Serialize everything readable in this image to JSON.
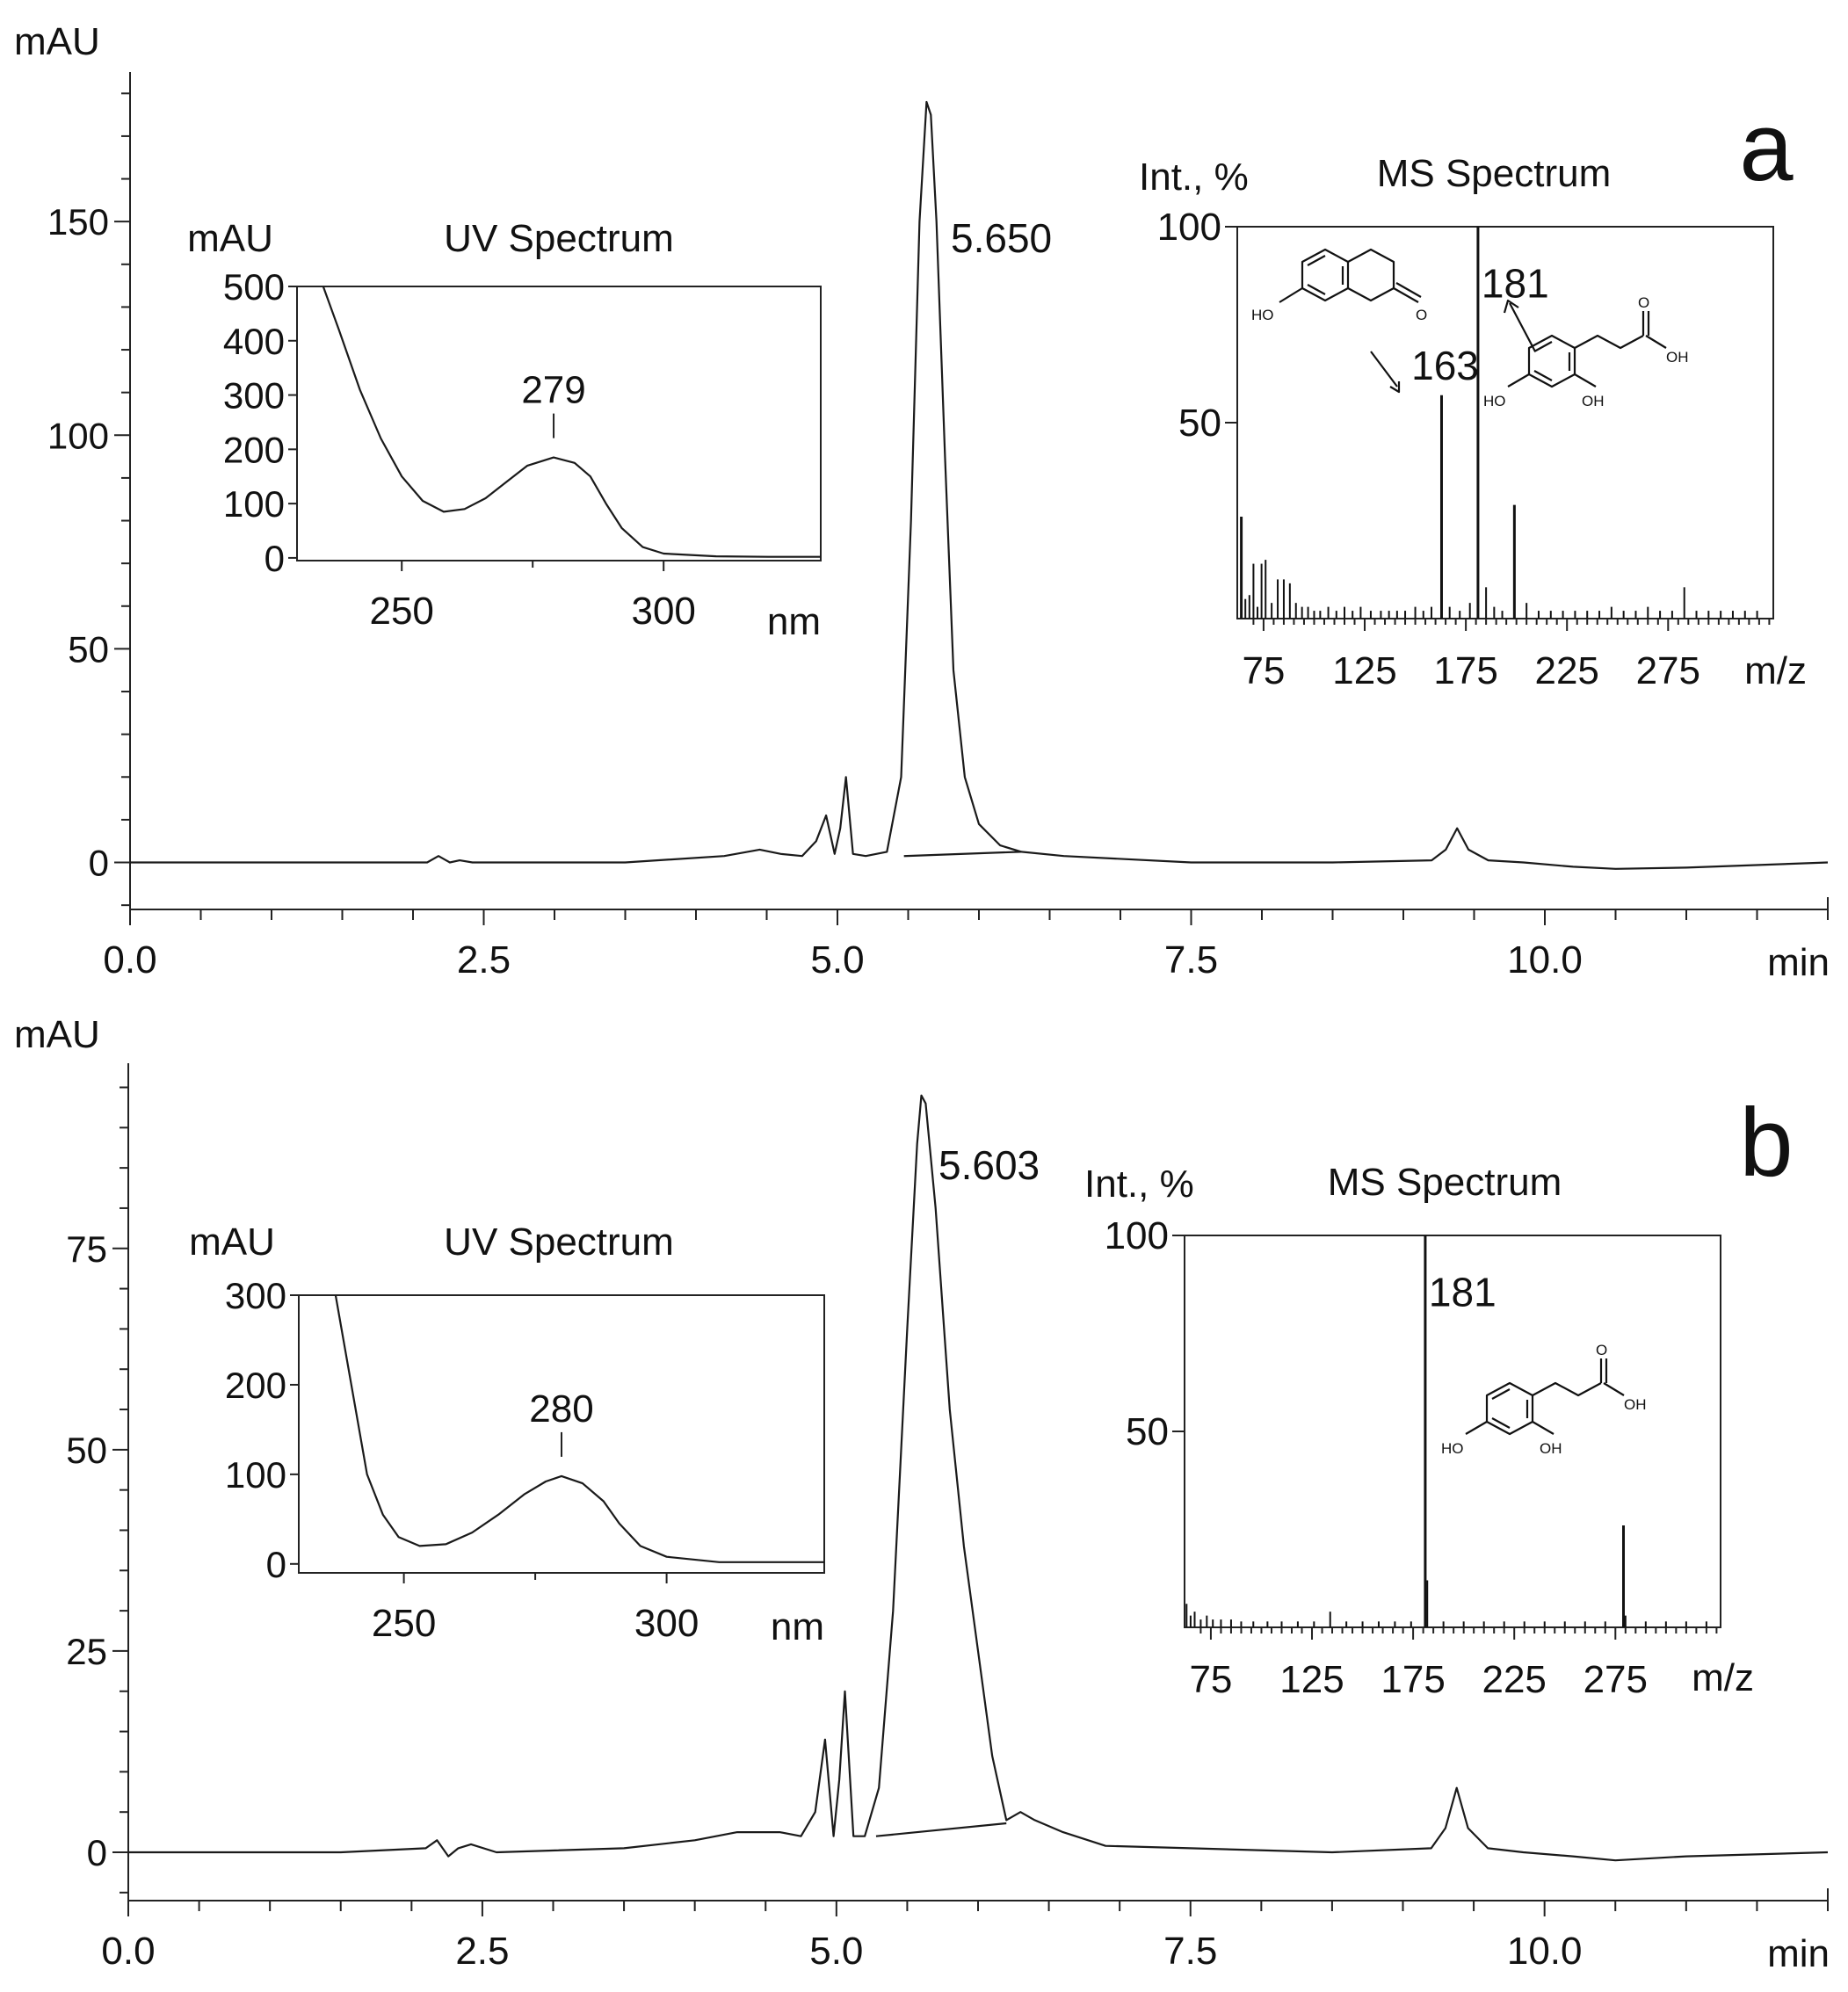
{
  "chart_data": [
    {
      "type": "line",
      "panel_label": "a",
      "ylabel": "mAU",
      "xlabel": "min",
      "xlim": [
        0,
        12
      ],
      "ylim": [
        -11,
        185
      ],
      "x_ticks": [
        "0.0",
        "2.5",
        "5.0",
        "7.5",
        "10.0"
      ],
      "x_tick_values": [
        0,
        2.5,
        5,
        7.5,
        10
      ],
      "y_ticks": [
        "0",
        "50",
        "100",
        "150"
      ],
      "y_tick_values": [
        0,
        50,
        100,
        150
      ],
      "peak_label": "5.650",
      "series": [
        {
          "name": "chromatogram a",
          "x": [
            0,
            1.5,
            2.1,
            2.18,
            2.26,
            2.33,
            2.42,
            2.6,
            3.5,
            4.2,
            4.45,
            4.6,
            4.75,
            4.85,
            4.92,
            4.98,
            5.02,
            5.06,
            5.11,
            5.2,
            5.35,
            5.45,
            5.52,
            5.58,
            5.63,
            5.66,
            5.7,
            5.76,
            5.82,
            5.9,
            6.0,
            6.15,
            6.3,
            6.6,
            7.5,
            8.5,
            9.2,
            9.3,
            9.38,
            9.46,
            9.6,
            9.85,
            10.2,
            10.5,
            11.0,
            12.0
          ],
          "y": [
            0,
            0,
            0,
            1.5,
            0,
            0.5,
            0,
            0,
            0,
            1.5,
            3,
            2,
            1.5,
            5,
            11,
            2,
            8,
            20,
            2,
            1.5,
            2.5,
            20,
            80,
            150,
            178,
            175,
            150,
            95,
            45,
            20,
            9,
            4,
            2.5,
            1.5,
            0,
            0,
            0.5,
            3,
            8,
            3,
            0.5,
            0,
            -1,
            -1.5,
            -1.2,
            0
          ]
        }
      ],
      "baseline_segment": {
        "x": [
          5.47,
          6.3
        ],
        "y": [
          1.5,
          2.5
        ]
      },
      "insets": [
        {
          "type": "line",
          "title": "UV Spectrum",
          "ylabel": "mAU",
          "xlabel": "nm",
          "xlim": [
            230,
            330
          ],
          "ylim": [
            -5,
            500
          ],
          "x_ticks": [
            "250",
            "300"
          ],
          "x_tick_values": [
            250,
            300
          ],
          "y_ticks": [
            "0",
            "100",
            "200",
            "300",
            "400",
            "500"
          ],
          "y_tick_values": [
            0,
            100,
            200,
            300,
            400,
            500
          ],
          "annotation": {
            "label": "279",
            "x": 279
          },
          "series": [
            {
              "name": "UV spectrum a",
              "x": [
                235,
                238,
                242,
                246,
                250,
                254,
                258,
                262,
                266,
                270,
                274,
                279,
                283,
                286,
                289,
                292,
                296,
                300,
                310,
                320,
                330
              ],
              "y": [
                500,
                420,
                310,
                220,
                150,
                105,
                85,
                90,
                110,
                140,
                170,
                185,
                175,
                150,
                100,
                55,
                20,
                8,
                3,
                2,
                2
              ]
            }
          ]
        },
        {
          "type": "bar",
          "title": "MS Spectrum",
          "ylabel": "Int., %",
          "xlabel": "m/z",
          "xlim": [
            62,
            327
          ],
          "ylim": [
            0,
            100
          ],
          "x_ticks": [
            "75",
            "125",
            "175",
            "225",
            "275"
          ],
          "x_tick_values": [
            75,
            125,
            175,
            225,
            275
          ],
          "y_ticks": [
            "50",
            "100"
          ],
          "y_tick_values": [
            50,
            100
          ],
          "peak_labels": [
            {
              "label": "181",
              "x": 181
            },
            {
              "label": "163",
              "x": 163
            }
          ],
          "peaks": {
            "x": [
              64,
              66,
              68,
              70,
              72,
              74,
              76,
              79,
              82,
              85,
              88,
              91,
              94,
              97,
              100,
              103,
              107,
              111,
              115,
              119,
              123,
              128,
              133,
              137,
              141,
              145,
              150,
              154,
              158,
              163,
              167,
              172,
              177,
              181,
              185,
              189,
              193,
              199,
              205,
              211,
              217,
              223,
              229,
              235,
              241,
              247,
              253,
              259,
              265,
              271,
              277,
              283,
              289,
              295,
              301,
              307,
              313,
              319
            ],
            "y": [
              26,
              5,
              6,
              14,
              3,
              14,
              15,
              4,
              10,
              10,
              9,
              4,
              3,
              3,
              2,
              2,
              3,
              2,
              3,
              2,
              3,
              2,
              2,
              2,
              2,
              2,
              3,
              2,
              3,
              57,
              3,
              2,
              4,
              100,
              8,
              3,
              2,
              29,
              4,
              2,
              2,
              2,
              2,
              2,
              2,
              3,
              2,
              2,
              3,
              2,
              2,
              8,
              2,
              2,
              2,
              2,
              2,
              2
            ]
          }
        }
      ]
    },
    {
      "type": "line",
      "panel_label": "b",
      "ylabel": "mAU",
      "xlabel": "min",
      "xlim": [
        0,
        12
      ],
      "ylim": [
        -6,
        98
      ],
      "x_ticks": [
        "0.0",
        "2.5",
        "5.0",
        "7.5",
        "10.0"
      ],
      "x_tick_values": [
        0,
        2.5,
        5,
        7.5,
        10
      ],
      "y_ticks": [
        "0",
        "25",
        "50",
        "75"
      ],
      "y_tick_values": [
        0,
        25,
        50,
        75
      ],
      "peak_label": "5.603",
      "series": [
        {
          "name": "chromatogram b",
          "x": [
            0,
            1.5,
            2.1,
            2.18,
            2.26,
            2.33,
            2.42,
            2.6,
            3.5,
            4.0,
            4.3,
            4.6,
            4.75,
            4.85,
            4.92,
            4.98,
            5.02,
            5.06,
            5.12,
            5.2,
            5.3,
            5.4,
            5.5,
            5.57,
            5.6,
            5.63,
            5.7,
            5.8,
            5.9,
            6.0,
            6.1,
            6.2,
            6.3,
            6.4,
            6.6,
            6.9,
            7.5,
            8.5,
            9.2,
            9.3,
            9.38,
            9.46,
            9.6,
            9.85,
            10.2,
            10.5,
            11.0,
            12.0
          ],
          "y": [
            0,
            0,
            0.5,
            1.5,
            -0.5,
            0.5,
            1,
            0,
            0.5,
            1.5,
            2.5,
            2.5,
            2,
            5,
            14,
            2,
            9,
            20,
            2,
            2,
            8,
            30,
            65,
            88,
            94,
            93,
            80,
            55,
            38,
            25,
            12,
            4,
            5,
            4,
            2.5,
            0.8,
            0.5,
            0,
            0.5,
            3,
            8,
            3,
            0.5,
            0,
            -0.5,
            -1,
            -0.5,
            0
          ]
        }
      ],
      "baseline_segment": {
        "x": [
          5.28,
          6.2
        ],
        "y": [
          2,
          3.6
        ]
      },
      "insets": [
        {
          "type": "line",
          "title": "UV Spectrum",
          "ylabel": "mAU",
          "xlabel": "nm",
          "xlim": [
            230,
            330
          ],
          "ylim": [
            -10,
            300
          ],
          "x_ticks": [
            "250",
            "300"
          ],
          "x_tick_values": [
            250,
            300
          ],
          "y_ticks": [
            "0",
            "100",
            "200",
            "300"
          ],
          "y_tick_values": [
            0,
            100,
            200,
            300
          ],
          "annotation": {
            "label": "280",
            "x": 280
          },
          "series": [
            {
              "name": "UV spectrum b",
              "x": [
                237,
                240,
                243,
                246,
                249,
                253,
                258,
                263,
                268,
                273,
                277,
                280,
                284,
                288,
                291,
                295,
                300,
                310,
                320,
                330
              ],
              "y": [
                300,
                200,
                100,
                55,
                30,
                20,
                22,
                35,
                55,
                78,
                92,
                98,
                90,
                70,
                45,
                20,
                8,
                2,
                2,
                2
              ]
            }
          ]
        },
        {
          "type": "bar",
          "title": "MS Spectrum",
          "ylabel": "Int., %",
          "xlabel": "m/z",
          "xlim": [
            62,
            327
          ],
          "ylim": [
            0,
            100
          ],
          "x_ticks": [
            "75",
            "125",
            "175",
            "225",
            "275"
          ],
          "x_tick_values": [
            75,
            125,
            175,
            225,
            275
          ],
          "y_ticks": [
            "50",
            "100"
          ],
          "y_tick_values": [
            50,
            100
          ],
          "peak_labels": [
            {
              "label": "181",
              "x": 181
            }
          ],
          "peaks": {
            "x": [
              63,
              65,
              67,
              70,
              73,
              76,
              80,
              85,
              90,
              96,
              103,
              110,
              118,
              126,
              134,
              142,
              150,
              158,
              166,
              174,
              181,
              182,
              190,
              200,
              210,
              220,
              230,
              240,
              250,
              260,
              270,
              279,
              280,
              290,
              300,
              310,
              320
            ],
            "y": [
              6,
              3,
              4,
              2,
              3,
              2,
              2,
              2,
              1.5,
              1.5,
              1.5,
              1.5,
              1.5,
              1.5,
              4,
              1.5,
              1.5,
              1.5,
              1.5,
              1.5,
              100,
              12,
              1.5,
              1.5,
              1.5,
              1.5,
              1.5,
              1.5,
              1.5,
              1.5,
              1.5,
              26,
              3,
              1.5,
              1.5,
              1.5,
              1.5
            ]
          }
        }
      ]
    }
  ],
  "structures": {
    "oh_label": "OH",
    "ho_label": "HO",
    "o_label": "O"
  }
}
